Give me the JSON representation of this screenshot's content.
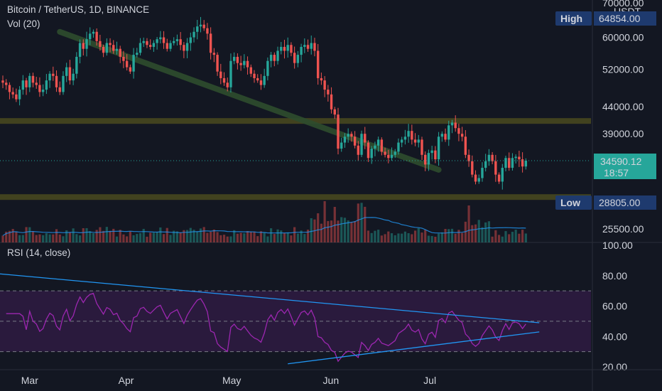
{
  "header": {
    "title": "Bitcoin / TetherUS, 1D, BINANCE",
    "volume_label": "Vol (20)",
    "rsi_label": "RSI (14, close)",
    "currency": "USDT"
  },
  "badges": {
    "high_label": "High",
    "high_value": "64854.00",
    "low_label": "Low",
    "low_value": "28805.00",
    "price_value": "34590.12",
    "countdown": "18:57"
  },
  "colors": {
    "background": "#131722",
    "up": "#26a69a",
    "down": "#ef5350",
    "trend": "#2e4d2e",
    "support": "#4a4a1e",
    "rsi_line": "#9c27b0",
    "rsi_band": "#2a1a3d",
    "rsi_trend": "#2196f3",
    "badge_blue": "#1e3a6e",
    "badge_teal": "#26a69a"
  },
  "chart_data": [
    {
      "type": "line",
      "title": "Bitcoin / TetherUS, 1D, BINANCE",
      "ylabel": "USDT",
      "scale": "log",
      "ylim": [
        25000,
        70000
      ],
      "yticks": [
        "70000.00",
        "60000.00",
        "52000.00",
        "44000.00",
        "39000.00",
        "25500.00"
      ],
      "xticks": [
        "Mar",
        "Apr",
        "May",
        "Jun",
        "Jul"
      ],
      "trend_line": {
        "from": [
          17,
          61500
        ],
        "to": [
          130,
          33200
        ]
      },
      "support_levels": [
        41300,
        29400
      ],
      "candles_note": "approximate daily closes Feb 20 – Jul 3",
      "closes": [
        49000,
        48500,
        47000,
        46500,
        45500,
        47500,
        49500,
        48000,
        50500,
        49000,
        48500,
        47000,
        47500,
        49500,
        51000,
        50500,
        48000,
        47000,
        50500,
        52500,
        49500,
        51000,
        55000,
        58500,
        57000,
        59500,
        61000,
        61500,
        59000,
        57500,
        56000,
        58500,
        58000,
        56500,
        57000,
        55000,
        54000,
        52500,
        51500,
        55500,
        56000,
        58500,
        59000,
        58000,
        57500,
        58500,
        59500,
        60000,
        58500,
        57000,
        58500,
        59000,
        59500,
        58000,
        56500,
        58500,
        60000,
        61500,
        63000,
        63500,
        62500,
        61000,
        56000,
        55500,
        51500,
        50000,
        49000,
        48000,
        54000,
        55000,
        53500,
        53000,
        54000,
        52500,
        51000,
        50000,
        49500,
        48500,
        50500,
        54000,
        55500,
        54000,
        56500,
        57500,
        56500,
        58000,
        56000,
        53500,
        55500,
        57500,
        58000,
        57000,
        58500,
        56500,
        50000,
        49500,
        47500,
        46500,
        43500,
        42500,
        36500,
        37500,
        38500,
        39000,
        38500,
        37000,
        35500,
        39000,
        37500,
        35000,
        36500,
        37000,
        38000,
        36000,
        35500,
        35000,
        35500,
        36000,
        37500,
        38000,
        38500,
        39500,
        38000,
        37500,
        38000,
        35500,
        34000,
        35800,
        36200,
        34800,
        38500,
        39000,
        38000,
        40500,
        41000,
        40000,
        39000,
        38500,
        35500,
        34500,
        32500,
        31500,
        32000,
        33500,
        34500,
        35500,
        34500,
        32500,
        31500,
        33500,
        35000,
        33500,
        35000,
        35200,
        34800,
        33700,
        34590
      ]
    },
    {
      "type": "bar",
      "title": "Vol (20)",
      "description": "daily volume with 20-day moving average"
    },
    {
      "type": "line",
      "title": "RSI (14, close)",
      "ylim": [
        20,
        100
      ],
      "yticks": [
        "100.00",
        "80.00",
        "60.00",
        "40.00",
        "20.00"
      ],
      "bands": {
        "upper": 70,
        "middle": 50,
        "lower": 30
      },
      "trend_lines": [
        {
          "from": [
            -5,
            82
          ],
          "to": [
            160,
            49
          ]
        },
        {
          "from": [
            85,
            22
          ],
          "to": [
            160,
            43
          ]
        }
      ]
    }
  ]
}
